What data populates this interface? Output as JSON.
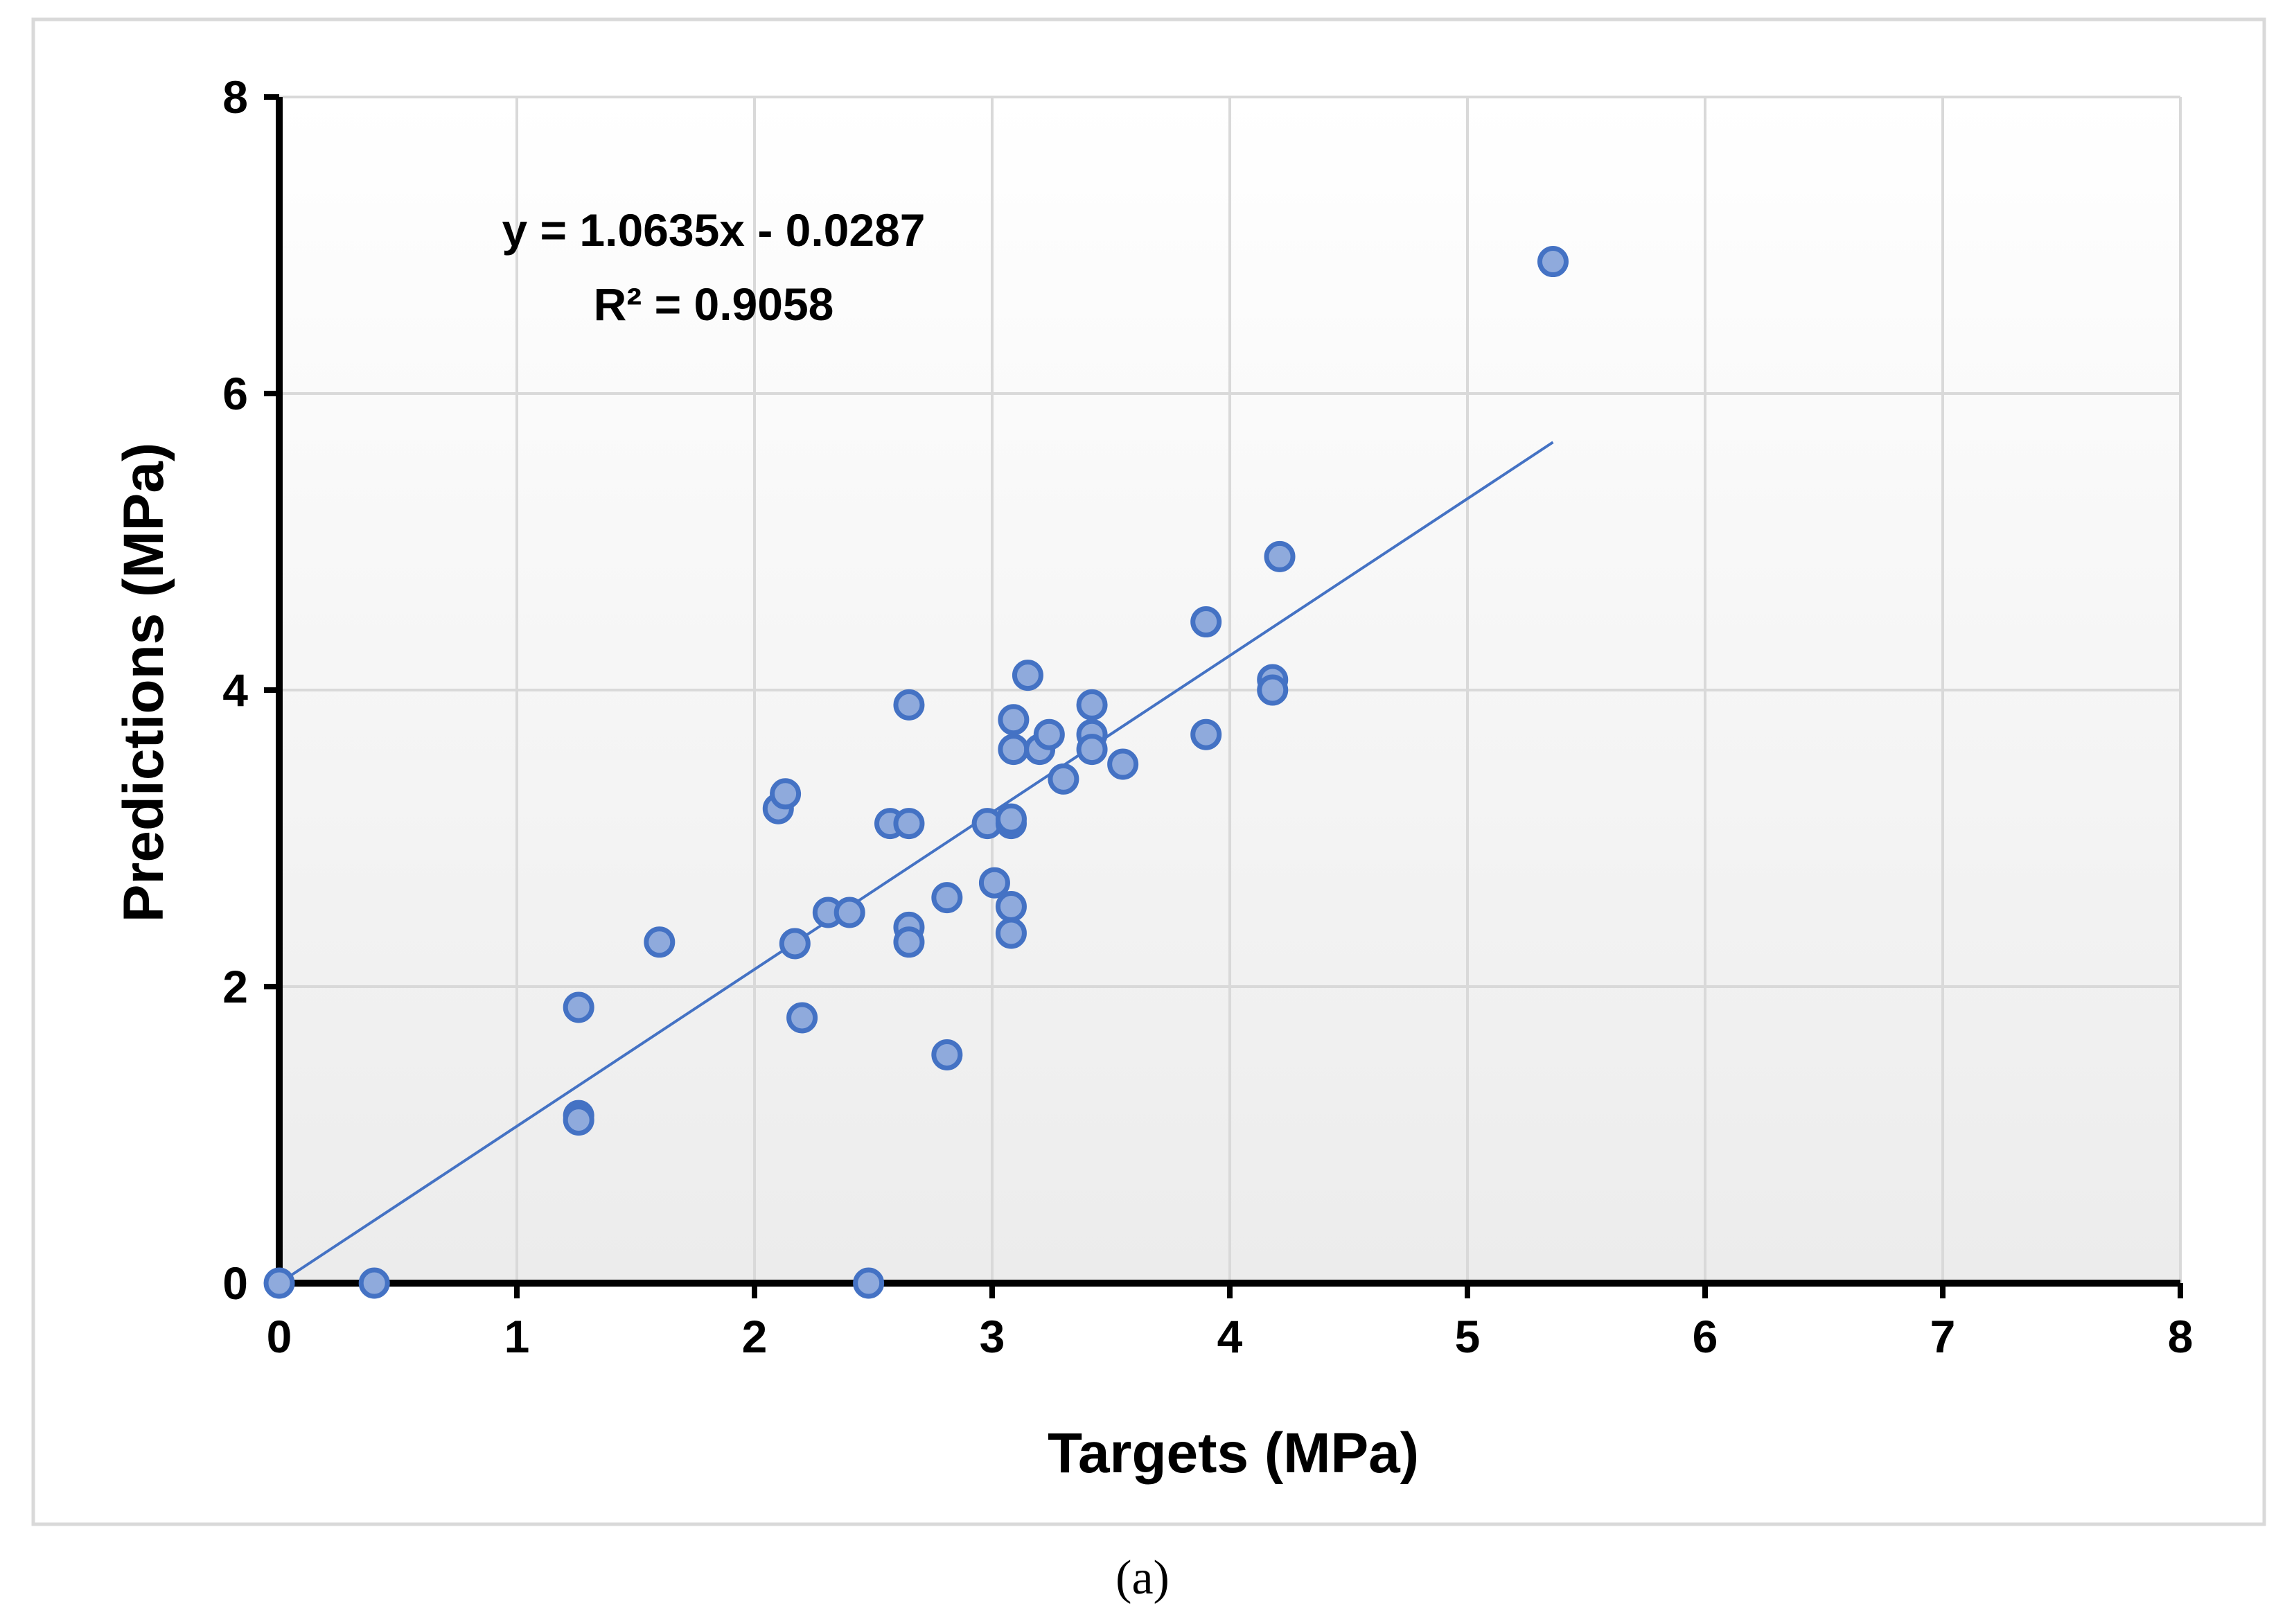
{
  "chart_data": {
    "type": "scatter",
    "xlabel": "Targets (MPa)",
    "ylabel": "Predictions (MPa)",
    "xlim": [
      0,
      8
    ],
    "ylim": [
      0,
      8
    ],
    "xticks": [
      "0",
      "1",
      "2",
      "3",
      "4",
      "5",
      "6",
      "7",
      "8"
    ],
    "yticks": [
      "0",
      "2",
      "4",
      "6",
      "8"
    ],
    "grid": true,
    "trendline": {
      "type": "linear",
      "slope": 1.0635,
      "intercept": -0.0287,
      "x_range": [
        0,
        5.36
      ],
      "equation_label": "y = 1.0635x - 0.0287",
      "r2_label": "R² = 0.9058"
    },
    "caption": "(a)",
    "colors": {
      "marker_fill": "#8faadc",
      "marker_edge": "#4472c4",
      "trendline": "#4472c4"
    },
    "points": [
      {
        "x": 0.0,
        "y": 0.0
      },
      {
        "x": 0.4,
        "y": 0.0
      },
      {
        "x": 2.48,
        "y": 0.0
      },
      {
        "x": 1.26,
        "y": 1.86
      },
      {
        "x": 1.26,
        "y": 1.13
      },
      {
        "x": 1.26,
        "y": 1.1
      },
      {
        "x": 1.6,
        "y": 2.3
      },
      {
        "x": 2.1,
        "y": 3.2
      },
      {
        "x": 2.13,
        "y": 3.3
      },
      {
        "x": 2.17,
        "y": 2.29
      },
      {
        "x": 2.2,
        "y": 1.79
      },
      {
        "x": 2.31,
        "y": 2.5
      },
      {
        "x": 2.4,
        "y": 2.5
      },
      {
        "x": 2.57,
        "y": 3.1
      },
      {
        "x": 2.65,
        "y": 3.1
      },
      {
        "x": 2.65,
        "y": 3.9
      },
      {
        "x": 2.65,
        "y": 2.4
      },
      {
        "x": 2.65,
        "y": 2.3
      },
      {
        "x": 2.81,
        "y": 2.6
      },
      {
        "x": 2.81,
        "y": 1.54
      },
      {
        "x": 2.98,
        "y": 3.1
      },
      {
        "x": 3.01,
        "y": 2.7
      },
      {
        "x": 3.08,
        "y": 3.1
      },
      {
        "x": 3.08,
        "y": 3.13
      },
      {
        "x": 3.08,
        "y": 2.54
      },
      {
        "x": 3.08,
        "y": 2.36
      },
      {
        "x": 3.09,
        "y": 3.8
      },
      {
        "x": 3.09,
        "y": 3.6
      },
      {
        "x": 3.15,
        "y": 4.1
      },
      {
        "x": 3.2,
        "y": 3.6
      },
      {
        "x": 3.24,
        "y": 3.7
      },
      {
        "x": 3.3,
        "y": 3.4
      },
      {
        "x": 3.42,
        "y": 3.9
      },
      {
        "x": 3.42,
        "y": 3.7
      },
      {
        "x": 3.42,
        "y": 3.6
      },
      {
        "x": 3.55,
        "y": 3.5
      },
      {
        "x": 3.9,
        "y": 4.46
      },
      {
        "x": 3.9,
        "y": 3.7
      },
      {
        "x": 4.18,
        "y": 4.07
      },
      {
        "x": 4.18,
        "y": 4.0
      },
      {
        "x": 4.21,
        "y": 4.9
      },
      {
        "x": 5.36,
        "y": 6.89
      }
    ]
  }
}
